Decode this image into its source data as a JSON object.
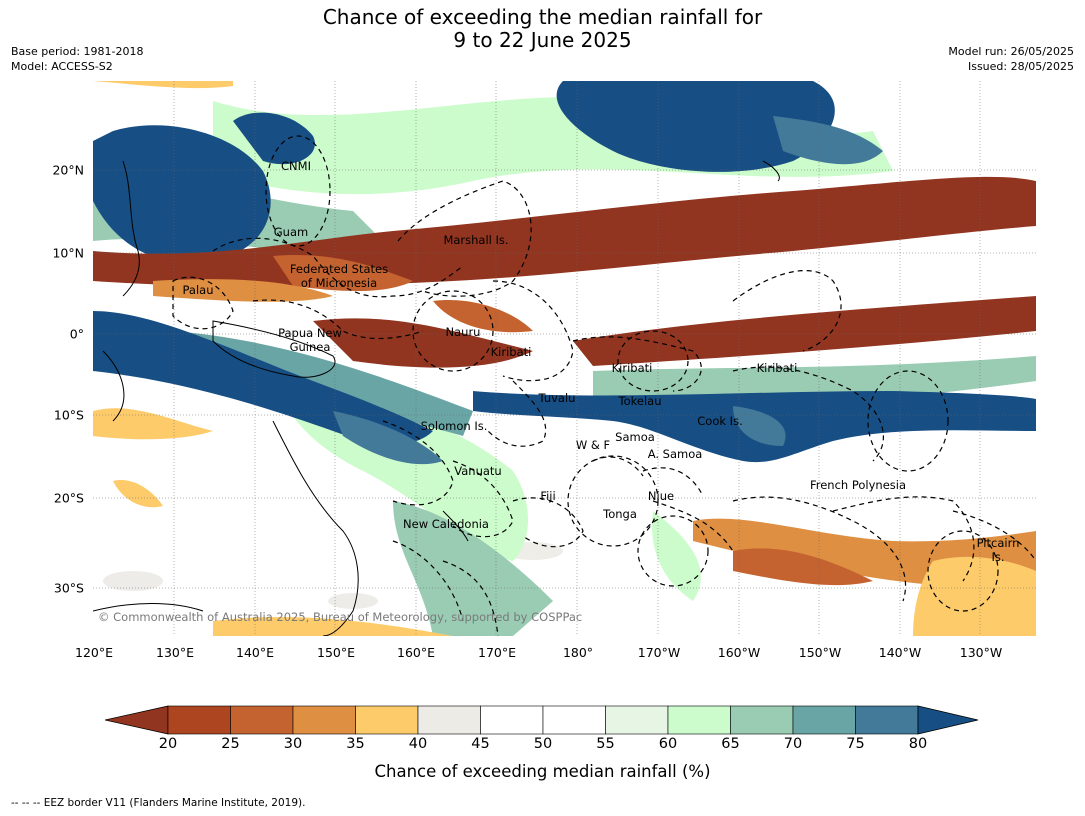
{
  "header": {
    "title_line1": "Chance of exceeding the median rainfall for",
    "title_line2": "9 to 22 June 2025",
    "base_period": "Base period: 1981-2018",
    "model": "Model: ACCESS-S2",
    "model_run": "Model run: 26/05/2025",
    "issued": "Issued: 28/05/2025"
  },
  "map": {
    "lon_ticks": [
      "120°E",
      "130°E",
      "140°E",
      "150°E",
      "160°E",
      "170°E",
      "180°",
      "170°W",
      "160°W",
      "150°W",
      "140°W",
      "130°W"
    ],
    "lat_ticks": [
      "20°N",
      "10°N",
      "0°",
      "10°S",
      "20°S",
      "30°S"
    ],
    "labels": {
      "cnmi": "CNMI",
      "guam": "Guam",
      "marshall": "Marshall Is.",
      "fsm": "Federated States\nof Micronesia",
      "palau": "Palau",
      "png": "Papua New\nGuinea",
      "nauru": "Nauru",
      "kiribati_w": "Kiribati",
      "kiribati_c": "Kiribati",
      "kiribati_e": "Kiribati",
      "tuvalu": "Tuvalu",
      "tokelau": "Tokelau",
      "solomon": "Solomon Is.",
      "cook": "Cook Is.",
      "wf": "W & F",
      "samoa": "Samoa",
      "asamoa": "A. Samoa",
      "vanuatu": "Vanuatu",
      "fiji": "Fiji",
      "niue": "Niue",
      "tonga": "Tonga",
      "french_polynesia": "French Polynesia",
      "new_caledonia": "New Caledonia",
      "pitcairn": "Pitcairn\nIs."
    },
    "copyright": "© Commonwealth of Australia 2025, Bureau of Meteorology, supported by COSPPac"
  },
  "colorbar": {
    "ticks": [
      "20",
      "25",
      "30",
      "35",
      "40",
      "45",
      "50",
      "55",
      "60",
      "65",
      "70",
      "75",
      "80"
    ],
    "colors": [
      "#ad4520",
      "#c4632f",
      "#de8f42",
      "#fdcb6a",
      "#edebe6",
      "#ffffff",
      "#ffffff",
      "#e6f5e4",
      "#ccfccb",
      "#9accb4",
      "#6aa5a6",
      "#437a99"
    ],
    "under_color": "#923520",
    "over_color": "#174f85",
    "label": "Chance of exceeding median rainfall (%)"
  },
  "footnote": "--  --  -- EEZ border V11 (Flanders Marine Institute, 2019)."
}
